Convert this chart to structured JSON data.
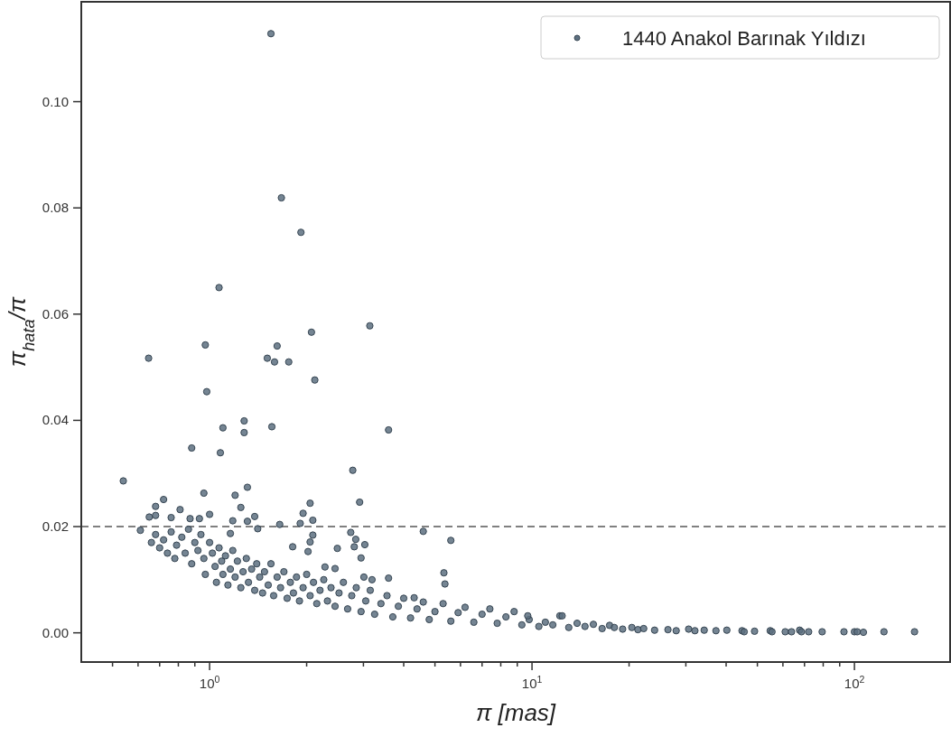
{
  "chart_data": {
    "type": "scatter",
    "xlabel": "π [mas]",
    "ylabel": "π$_{hata}$/π",
    "log": "x",
    "xlim": [
      0.4,
      198
    ],
    "ylim": [
      -0.0055,
      0.1188
    ],
    "xticks": [
      {
        "value": 0.5,
        "label": null
      },
      {
        "value": 0.6,
        "label": null
      },
      {
        "value": 0.7,
        "label": null
      },
      {
        "value": 0.8,
        "label": null
      },
      {
        "value": 0.9,
        "label": null
      },
      {
        "value": 1,
        "label": "10$^{0}$"
      },
      {
        "value": 2,
        "label": null
      },
      {
        "value": 3,
        "label": null
      },
      {
        "value": 4,
        "label": null
      },
      {
        "value": 5,
        "label": null
      },
      {
        "value": 6,
        "label": null
      },
      {
        "value": 7,
        "label": null
      },
      {
        "value": 8,
        "label": null
      },
      {
        "value": 9,
        "label": null
      },
      {
        "value": 10,
        "label": "10$^{1}$"
      },
      {
        "value": 20,
        "label": null
      },
      {
        "value": 30,
        "label": null
      },
      {
        "value": 40,
        "label": null
      },
      {
        "value": 50,
        "label": null
      },
      {
        "value": 60,
        "label": null
      },
      {
        "value": 70,
        "label": null
      },
      {
        "value": 80,
        "label": null
      },
      {
        "value": 90,
        "label": null
      },
      {
        "value": 100,
        "label": "10$^{2}$"
      }
    ],
    "yticks": [
      {
        "value": 0,
        "label": "0.00"
      },
      {
        "value": 0.02,
        "label": "0.02"
      },
      {
        "value": 0.04,
        "label": "0.04"
      },
      {
        "value": 0.06,
        "label": "0.06"
      },
      {
        "value": 0.08,
        "label": "0.08"
      },
      {
        "value": 0.1,
        "label": "0.10"
      }
    ],
    "grid": false,
    "legend": "top right",
    "marker": "circle",
    "ref_lines": [
      {
        "axis": "y",
        "value": 0.02,
        "label": null,
        "color": "#808080",
        "line_style": "dashed"
      }
    ],
    "series": [
      {
        "name": "1440 Anakol Barınak Yıldızı",
        "color": "#5d7080",
        "x": [
          1.55,
          1.67,
          1.92,
          1.07,
          2.07,
          3.14,
          0.647,
          0.97,
          1.62,
          1.51,
          1.59,
          1.76,
          2.12,
          0.98,
          1.28,
          1.28,
          1.1,
          1.56,
          3.59,
          0.88,
          1.08,
          0.54,
          2.78,
          2.92,
          1.31,
          1.2,
          0.96,
          2.05,
          0.72,
          1.25,
          1.95,
          1.0,
          1.38,
          0.93,
          0.87,
          0.68,
          0.68,
          0.65,
          0.76,
          0.81,
          2.09,
          1.91,
          1.31,
          1.18,
          1.65,
          0.61,
          4.6,
          5.6,
          2.74,
          2.84,
          3.03,
          2.81,
          2.95,
          2.49,
          2.09,
          2.05,
          2.02,
          1.81,
          1.41,
          1.16,
          3.59,
          5.33,
          5.37,
          4.31,
          3.19,
          3.01,
          2.28,
          2.45,
          0.66,
          0.68,
          0.7,
          0.72,
          0.74,
          0.76,
          0.78,
          0.79,
          0.82,
          0.84,
          0.86,
          0.88,
          0.9,
          0.92,
          0.94,
          0.96,
          0.97,
          1.0,
          1.02,
          1.04,
          1.05,
          1.07,
          1.09,
          1.1,
          1.12,
          1.14,
          1.16,
          1.18,
          1.2,
          1.22,
          1.25,
          1.27,
          1.3,
          1.32,
          1.35,
          1.38,
          1.4,
          1.43,
          1.46,
          1.48,
          1.52,
          1.55,
          1.58,
          1.62,
          1.66,
          1.7,
          1.74,
          1.78,
          1.82,
          1.86,
          1.9,
          1.95,
          2.0,
          2.05,
          2.1,
          2.15,
          2.2,
          2.26,
          2.32,
          2.38,
          2.45,
          2.52,
          2.6,
          2.68,
          2.76,
          2.85,
          2.95,
          3.05,
          3.15,
          3.25,
          3.4,
          3.55,
          3.7,
          3.85,
          4.0,
          4.2,
          4.4,
          4.6,
          4.8,
          5.0,
          5.3,
          5.6,
          5.9,
          6.2,
          6.6,
          7.0,
          7.4,
          7.8,
          8.3,
          8.8,
          9.3,
          9.8,
          9.7,
          10.5,
          11.0,
          11.6,
          12.2,
          12.4,
          13.0,
          13.8,
          14.6,
          15.5,
          16.5,
          17.4,
          18.0,
          19.1,
          20.4,
          21.3,
          22.2,
          24.0,
          26.4,
          28.0,
          30.6,
          32.0,
          34.2,
          37.2,
          40.2,
          44.8,
          45.5,
          49.0,
          54.8,
          55.5,
          61.0,
          63.8,
          67.6,
          68.5,
          72.1,
          79.4,
          92.8,
          100,
          102,
          106.6,
          123.5,
          153.6
        ],
        "values": [
          0.1128,
          0.0819,
          0.0754,
          0.065,
          0.0566,
          0.0578,
          0.0517,
          0.0542,
          0.054,
          0.0517,
          0.051,
          0.051,
          0.0476,
          0.0454,
          0.0399,
          0.0377,
          0.0386,
          0.0388,
          0.0382,
          0.0348,
          0.0339,
          0.0286,
          0.0306,
          0.0246,
          0.0274,
          0.0259,
          0.0263,
          0.0244,
          0.0251,
          0.0236,
          0.0225,
          0.0223,
          0.0219,
          0.0215,
          0.0215,
          0.0238,
          0.0221,
          0.0218,
          0.0217,
          0.0232,
          0.0212,
          0.0206,
          0.021,
          0.0211,
          0.0204,
          0.0193,
          0.0191,
          0.0174,
          0.0189,
          0.0176,
          0.0166,
          0.0162,
          0.0141,
          0.0159,
          0.0184,
          0.0171,
          0.0153,
          0.0162,
          0.0196,
          0.0187,
          0.0103,
          0.0113,
          0.0092,
          0.0066,
          0.01,
          0.0105,
          0.0124,
          0.0121,
          0.017,
          0.0185,
          0.016,
          0.0175,
          0.015,
          0.019,
          0.014,
          0.0165,
          0.018,
          0.015,
          0.0195,
          0.013,
          0.017,
          0.0155,
          0.0185,
          0.014,
          0.011,
          0.017,
          0.015,
          0.0125,
          0.0095,
          0.016,
          0.0135,
          0.011,
          0.0145,
          0.009,
          0.012,
          0.0155,
          0.0105,
          0.0135,
          0.0085,
          0.0115,
          0.014,
          0.0095,
          0.012,
          0.008,
          0.013,
          0.0105,
          0.0075,
          0.0115,
          0.009,
          0.013,
          0.007,
          0.0105,
          0.0085,
          0.0115,
          0.0065,
          0.0095,
          0.0075,
          0.0105,
          0.006,
          0.0085,
          0.011,
          0.007,
          0.0095,
          0.0055,
          0.008,
          0.01,
          0.006,
          0.0085,
          0.005,
          0.0075,
          0.0095,
          0.0045,
          0.007,
          0.0085,
          0.004,
          0.006,
          0.008,
          0.0035,
          0.0055,
          0.007,
          0.003,
          0.005,
          0.0065,
          0.0028,
          0.0045,
          0.0058,
          0.0025,
          0.004,
          0.0055,
          0.0022,
          0.0038,
          0.0048,
          0.002,
          0.0035,
          0.0045,
          0.0018,
          0.003,
          0.004,
          0.0015,
          0.0025,
          0.0032,
          0.0012,
          0.002,
          0.0015,
          0.0032,
          0.0032,
          0.001,
          0.0018,
          0.0012,
          0.0016,
          0.0008,
          0.0014,
          0.001,
          0.0007,
          0.001,
          0.0006,
          0.0008,
          0.0005,
          0.0006,
          0.0004,
          0.0007,
          0.0004,
          0.0005,
          0.0004,
          0.0005,
          0.0004,
          0.0002,
          0.0003,
          0.0004,
          0.0002,
          0.0002,
          0.0002,
          0.0005,
          0.0002,
          0.0002,
          0.0002,
          0.0002,
          0.0002,
          0.0002,
          0.0001,
          0.0002,
          0.0002
        ]
      }
    ]
  }
}
